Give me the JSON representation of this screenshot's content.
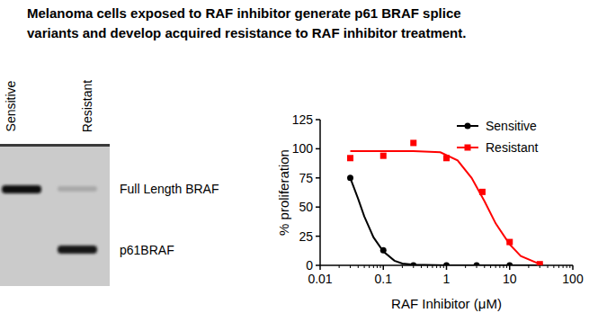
{
  "title_lines": [
    "Melanoma cells exposed to RAF inhibitor generate p61 BRAF splice",
    "variants and develop acquired resistance to RAF inhibitor treatment."
  ],
  "blot": {
    "lanes": [
      "Sensitive",
      "Resistant"
    ],
    "bands": [
      "Full Length BRAF",
      "p61BRAF"
    ]
  },
  "chart_data": {
    "type": "line",
    "log": "x",
    "x_label": "RAF Inhibitor (μM)",
    "y_label": "% proliferation",
    "xlim": [
      0.01,
      100
    ],
    "xticks": [
      0.01,
      0.1,
      1,
      10,
      100
    ],
    "ylim": [
      0,
      125
    ],
    "yticks": [
      0,
      25,
      50,
      75,
      100,
      125
    ],
    "legend": "top-right",
    "series": [
      {
        "name": "Sensitive",
        "color": "#000000",
        "marker": "circle",
        "line_style": "solid",
        "x": [
          0.03,
          0.1,
          0.3,
          1,
          3,
          10,
          30
        ],
        "values": [
          75,
          13,
          0,
          0,
          0,
          0,
          0
        ],
        "fit_x": [
          0.03,
          0.04,
          0.05,
          0.07,
          0.1,
          0.15,
          0.2,
          0.3,
          1,
          30
        ],
        "fit_values": [
          75,
          57,
          42,
          24,
          12,
          4,
          1.5,
          0.5,
          0,
          0
        ]
      },
      {
        "name": "Resistant",
        "color": "#ff0000",
        "marker": "square",
        "line_style": "solid",
        "x": [
          0.03,
          0.1,
          0.3,
          1,
          3.7,
          10,
          30
        ],
        "values": [
          92,
          94,
          105,
          92,
          63,
          20,
          1
        ],
        "fit_x": [
          0.03,
          0.3,
          0.8,
          1.5,
          2.5,
          4,
          6,
          10,
          15,
          30
        ],
        "fit_values": [
          98,
          98,
          97,
          90,
          75,
          55,
          36,
          18,
          8,
          1
        ]
      }
    ]
  }
}
